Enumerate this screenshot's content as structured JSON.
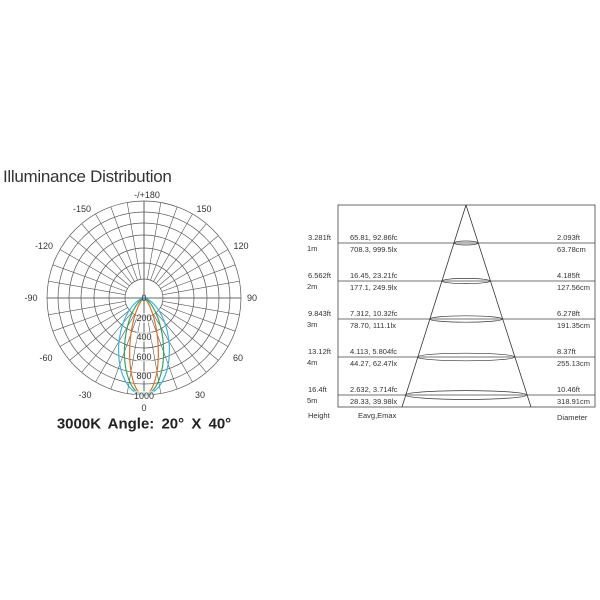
{
  "title": "Illuminance Distribution",
  "polar": {
    "angle_labels": [
      "-/+180",
      "-150",
      "150",
      "-120",
      "120",
      "-90",
      "90",
      "-60",
      "60",
      "-30",
      "30",
      "0"
    ],
    "radial_labels": [
      "0",
      "200",
      "400",
      "600",
      "800",
      "1000"
    ],
    "radial_max": 1000,
    "beam_colors": [
      "#d9732e",
      "#3aa06a",
      "#3bb6d6"
    ]
  },
  "caption": "3000K   Angle: 20° X 40°",
  "cone": {
    "rows": [
      {
        "ft": "3.281ft",
        "m": "1m",
        "fc": "65.81, 92.86fc",
        "lx": "708.3, 999.5lx",
        "dia_ft": "2.093ft",
        "dia_cm": "63.78cm"
      },
      {
        "ft": "6.562ft",
        "m": "2m",
        "fc": "16.45, 23.21fc",
        "lx": "177.1, 249.9lx",
        "dia_ft": "4.185ft",
        "dia_cm": "127.56cm"
      },
      {
        "ft": "9.843ft",
        "m": "3m",
        "fc": "7.312, 10.32fc",
        "lx": "78.70, 111.1lx",
        "dia_ft": "6.278ft",
        "dia_cm": "191.35cm"
      },
      {
        "ft": "13.12ft",
        "m": "4m",
        "fc": "4.113, 5.804fc",
        "lx": "44.27, 62.47lx",
        "dia_ft": "8.37ft",
        "dia_cm": "255.13cm"
      },
      {
        "ft": "16.4ft",
        "m": "5m",
        "fc": "2.632, 3.714fc",
        "lx": "28.33, 39.98lx",
        "dia_ft": "10.46ft",
        "dia_cm": "318.91cm"
      }
    ],
    "footer": {
      "height": "Height",
      "eavg": "Eavg,Emax",
      "diameter": "Diameter"
    }
  }
}
